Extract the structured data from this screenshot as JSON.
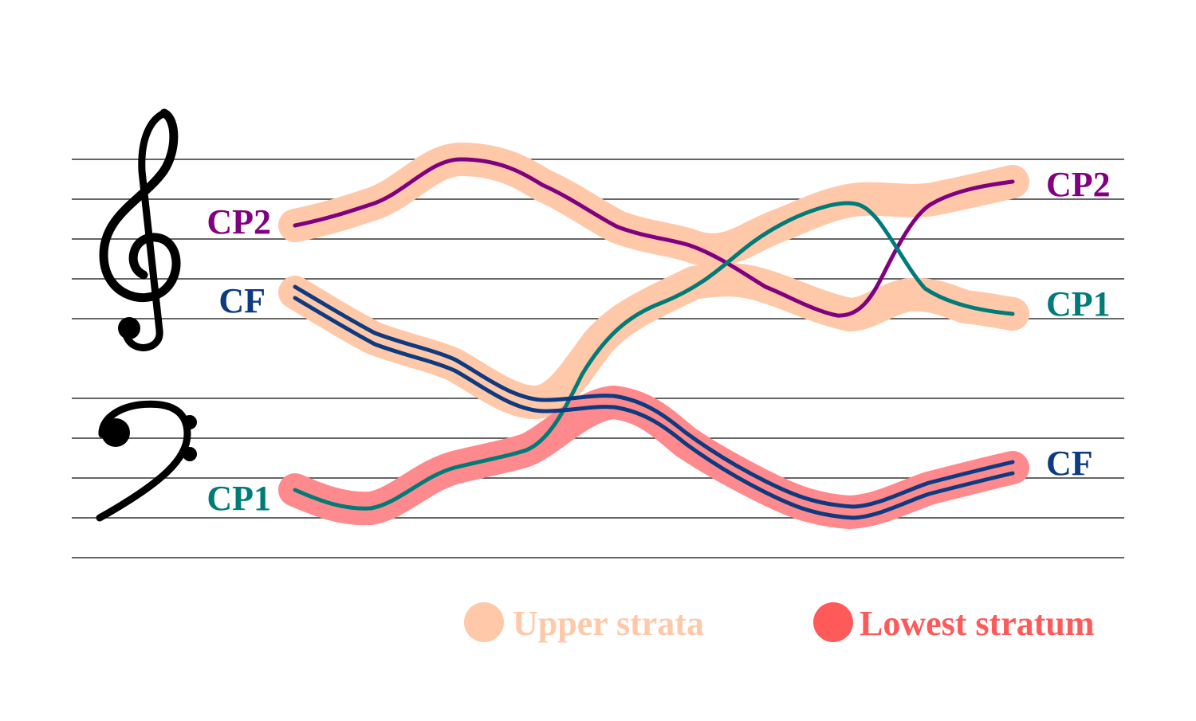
{
  "colors": {
    "background": "#ffffff",
    "staff_line": "#333333",
    "clef": "#000000",
    "upper_strata": "#ffc8a8",
    "lowest_stratum": "#ff8a8e",
    "legend_lowest_dot": "#ff5a5a",
    "legend_lowest_text": "#ff5a5a",
    "cp2": "#800080",
    "cp1": "#007b78",
    "cf": "#0d3a80"
  },
  "clefs": {
    "treble": "treble-clef-icon",
    "bass": "bass-clef-icon"
  },
  "labels_left": {
    "cp2": "CP2",
    "cf": "CF",
    "cp1": "CP1"
  },
  "labels_right": {
    "cp2": "CP2",
    "cp1": "CP1",
    "cf": "CF"
  },
  "legend": {
    "upper": "Upper strata",
    "lowest": "Lowest stratum"
  }
}
